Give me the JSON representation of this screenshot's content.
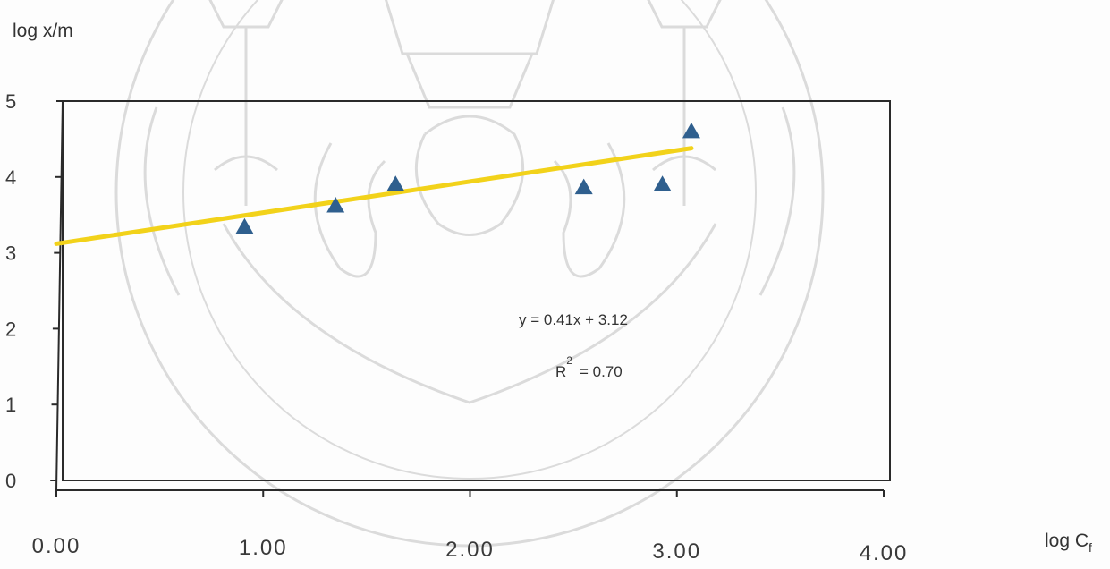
{
  "chart_data": {
    "type": "scatter",
    "xlabel_main": "log C",
    "xlabel_sub": "f",
    "ylabel": "log x/m",
    "xlim": [
      0,
      4
    ],
    "ylim": [
      0,
      5
    ],
    "x_ticks": [
      0,
      1,
      2,
      3,
      4
    ],
    "x_tick_labels": [
      "0.00",
      "1.00",
      "2.00",
      "3.00",
      "4.00"
    ],
    "y_ticks": [
      0,
      1,
      2,
      3,
      4,
      5
    ],
    "y_tick_labels": [
      "0",
      "1",
      "2",
      "3",
      "4",
      "5"
    ],
    "grid": false,
    "series": [
      {
        "marker": "triangle",
        "color": "#2f5f8e",
        "points": [
          {
            "x": 0.91,
            "y": 3.34
          },
          {
            "x": 1.35,
            "y": 3.62
          },
          {
            "x": 1.64,
            "y": 3.9
          },
          {
            "x": 2.55,
            "y": 3.86
          },
          {
            "x": 2.93,
            "y": 3.9
          },
          {
            "x": 3.07,
            "y": 4.6
          }
        ]
      }
    ],
    "trendline": {
      "slope": 0.41,
      "intercept": 3.12,
      "x_range": [
        0,
        3.07
      ],
      "color": "#f2d21a"
    },
    "equation_text": "y = 0.41x + 3.12",
    "r2": {
      "label": "R",
      "superscript": "2",
      "value_text": "= 0.70"
    }
  }
}
